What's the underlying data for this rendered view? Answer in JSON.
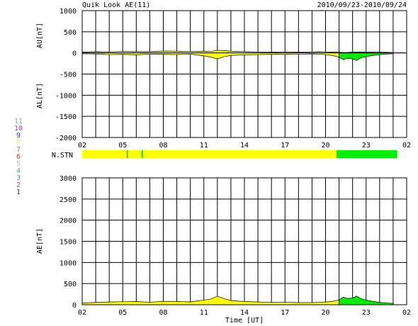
{
  "header": {
    "title": "Quik Look AE(11)",
    "date_range": "2010/09/23-2010/09/24"
  },
  "station_legend": [
    {
      "label": "11",
      "color": "#33cccc"
    },
    {
      "label": "10",
      "color": "#cc33cc"
    },
    {
      "label": "9",
      "color": "#3333cc"
    },
    {
      "label": "8",
      "color": "#ffff66"
    },
    {
      "label": "7",
      "color": "#33cc33"
    },
    {
      "label": "6",
      "color": "#e03030"
    },
    {
      "label": "5",
      "color": "#bbbbbb"
    },
    {
      "label": "4",
      "color": "#33aaaa"
    },
    {
      "label": "3",
      "color": "#3399cc"
    },
    {
      "label": "2",
      "color": "#cc3399"
    },
    {
      "label": "1",
      "color": "#3333aa"
    }
  ],
  "chart_data": [
    {
      "type": "area",
      "name": "AU/AL panel",
      "ylabel_top": "AU[nT]",
      "ylabel_bottom": "AL[nT]",
      "ylim": [
        -2000,
        1000
      ],
      "y_ticks": [
        "1000",
        "500",
        "0",
        "-500",
        "-1000",
        "-1500",
        "-2000"
      ],
      "x_ticks": [
        "02",
        "05",
        "08",
        "11",
        "14",
        "17",
        "20",
        "23",
        "02"
      ],
      "xlim_hours": [
        0,
        24
      ],
      "grid": true,
      "au": [
        [
          0,
          20
        ],
        [
          1,
          30
        ],
        [
          2,
          25
        ],
        [
          3,
          35
        ],
        [
          4,
          30
        ],
        [
          5,
          30
        ],
        [
          6,
          45
        ],
        [
          7,
          40
        ],
        [
          8,
          35
        ],
        [
          9,
          40
        ],
        [
          9.5,
          35
        ],
        [
          10,
          60
        ],
        [
          10.5,
          55
        ],
        [
          11,
          40
        ],
        [
          12,
          30
        ],
        [
          13,
          25
        ],
        [
          14,
          20
        ],
        [
          15,
          25
        ],
        [
          16,
          20
        ],
        [
          17,
          25
        ],
        [
          17.5,
          30
        ],
        [
          18,
          25
        ],
        [
          18.5,
          20
        ],
        [
          19,
          15
        ],
        [
          19.5,
          10
        ],
        [
          20,
          20
        ],
        [
          20.5,
          25
        ],
        [
          21,
          20
        ],
        [
          22,
          15
        ],
        [
          22.5,
          15
        ],
        [
          23,
          10
        ]
      ],
      "al": [
        [
          0,
          -20
        ],
        [
          1,
          -25
        ],
        [
          2,
          -40
        ],
        [
          3,
          -35
        ],
        [
          4,
          -45
        ],
        [
          5,
          -30
        ],
        [
          6,
          -35
        ],
        [
          7,
          -40
        ],
        [
          8,
          -30
        ],
        [
          8.5,
          -50
        ],
        [
          9,
          -70
        ],
        [
          9.5,
          -100
        ],
        [
          10,
          -140
        ],
        [
          10.5,
          -90
        ],
        [
          11,
          -60
        ],
        [
          12,
          -45
        ],
        [
          13,
          -40
        ],
        [
          14,
          -35
        ],
        [
          15,
          -35
        ],
        [
          16,
          -30
        ],
        [
          17,
          -25
        ],
        [
          17.5,
          -30
        ],
        [
          18,
          -40
        ],
        [
          18.5,
          -60
        ],
        [
          19,
          -100
        ],
        [
          19.3,
          -160
        ],
        [
          19.6,
          -130
        ],
        [
          20,
          -140
        ],
        [
          20.3,
          -180
        ],
        [
          20.6,
          -120
        ],
        [
          21,
          -90
        ],
        [
          21.5,
          -60
        ],
        [
          22,
          -40
        ],
        [
          22.5,
          -30
        ],
        [
          23,
          -20
        ]
      ],
      "color_switch_hour": 18.8,
      "colors": {
        "pre": "#ffff00",
        "post": "#00ee00"
      }
    },
    {
      "type": "bar",
      "name": "N.STN",
      "label": "N.STN",
      "segments": [
        {
          "from": 0,
          "to": 18.8,
          "color": "#ffff00"
        },
        {
          "from": 18.8,
          "to": 23.3,
          "color": "#00ee00"
        }
      ],
      "markers": [
        {
          "hour": 3.3,
          "color": "#00cc00"
        },
        {
          "hour": 4.4,
          "color": "#00cc00"
        }
      ]
    },
    {
      "type": "area",
      "name": "AE panel",
      "ylabel": "AE[nT]",
      "xlabel": "Time [UT]",
      "ylim": [
        0,
        3000
      ],
      "y_ticks": [
        "3000",
        "2500",
        "2000",
        "1500",
        "1000",
        "500",
        "0"
      ],
      "x_ticks": [
        "02",
        "05",
        "08",
        "11",
        "14",
        "17",
        "20",
        "23",
        "02"
      ],
      "xlim_hours": [
        0,
        24
      ],
      "grid": true,
      "ae": [
        [
          0,
          40
        ],
        [
          1,
          55
        ],
        [
          2,
          65
        ],
        [
          3,
          70
        ],
        [
          4,
          75
        ],
        [
          5,
          60
        ],
        [
          6,
          80
        ],
        [
          7,
          80
        ],
        [
          8,
          65
        ],
        [
          8.5,
          90
        ],
        [
          9,
          110
        ],
        [
          9.5,
          135
        ],
        [
          10,
          200
        ],
        [
          10.5,
          145
        ],
        [
          11,
          100
        ],
        [
          12,
          75
        ],
        [
          13,
          65
        ],
        [
          14,
          55
        ],
        [
          15,
          60
        ],
        [
          16,
          50
        ],
        [
          17,
          50
        ],
        [
          17.5,
          60
        ],
        [
          18,
          65
        ],
        [
          18.5,
          80
        ],
        [
          19,
          115
        ],
        [
          19.3,
          180
        ],
        [
          19.6,
          150
        ],
        [
          20,
          160
        ],
        [
          20.3,
          205
        ],
        [
          20.6,
          145
        ],
        [
          21,
          110
        ],
        [
          21.5,
          80
        ],
        [
          22,
          55
        ],
        [
          22.5,
          45
        ],
        [
          23,
          30
        ]
      ],
      "color_switch_hour": 18.8,
      "colors": {
        "pre": "#ffff00",
        "post": "#00ee00"
      }
    }
  ]
}
